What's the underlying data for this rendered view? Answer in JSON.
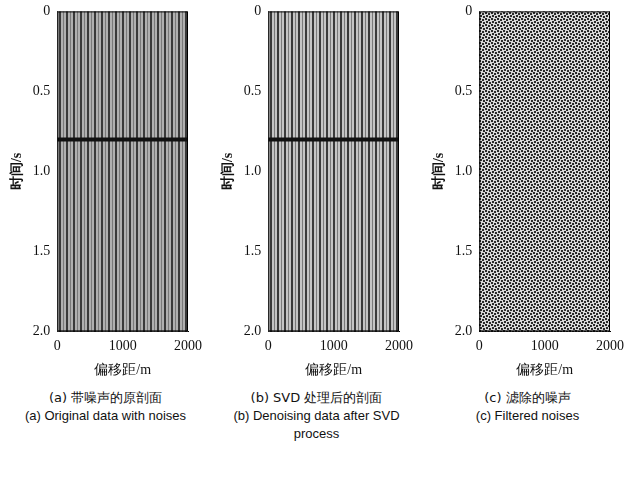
{
  "chart_data": [
    {
      "type": "line",
      "title": "(a) 带噪声的原剖面",
      "subtitle": "(a) Original data with noises",
      "x_label": "偏移距/m",
      "y_label": "时间/s",
      "x": [
        0,
        2000
      ],
      "values": [
        0.8,
        0.8
      ],
      "color": "#111111",
      "xlim": [
        0,
        2000
      ],
      "xticks": [
        0,
        1000,
        2000
      ],
      "ylim": [
        0,
        2
      ],
      "yticks": [
        0,
        0.5,
        {
          "value": 1,
          "label": "1.0"
        },
        1.5,
        {
          "value": 2,
          "label": "2.0"
        }
      ],
      "grid": false
    },
    {
      "type": "line",
      "title": "(b) SVD 处理后的剖面",
      "subtitle": "(b) Denoising data after SVD process",
      "x_label": "偏移距/m",
      "y_label": "时间/s",
      "x": [
        0,
        2000
      ],
      "values": [
        0.8,
        0.8
      ],
      "color": "#111111",
      "xlim": [
        0,
        2000
      ],
      "xticks": [
        0,
        1000,
        2000
      ],
      "ylim": [
        0,
        2
      ],
      "yticks": [
        0,
        0.5,
        {
          "value": 1,
          "label": "1.0"
        },
        1.5,
        {
          "value": 2,
          "label": "2.0"
        }
      ],
      "grid": false
    },
    {
      "type": "line",
      "title": "(c) 滤除的噪声",
      "subtitle": "(c) Filtered noises",
      "x_label": "偏移距/m",
      "y_label": "时间/s",
      "x": [],
      "values": [],
      "color": "#111111",
      "xlim": [
        0,
        2000
      ],
      "xticks": [
        0,
        1000,
        2000
      ],
      "ylim": [
        0,
        2
      ],
      "yticks": [
        0,
        0.5,
        {
          "value": 1,
          "label": "1.0"
        },
        1.5,
        {
          "value": 2,
          "label": "2.0"
        }
      ],
      "grid": false
    }
  ]
}
